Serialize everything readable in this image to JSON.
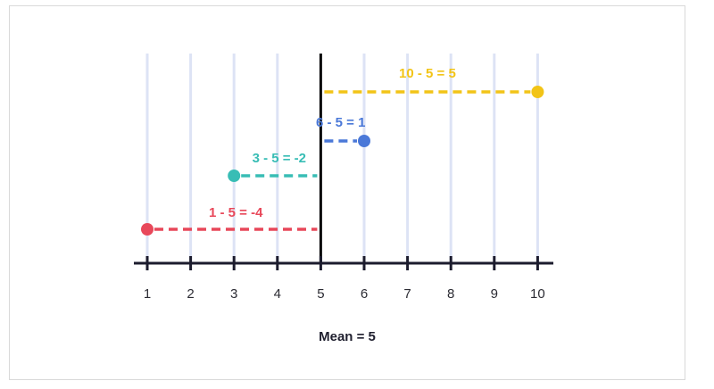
{
  "diagram": {
    "title": "Mean = 5",
    "mean": 5,
    "axis": {
      "min": 1,
      "max": 10,
      "ticks": [
        "1",
        "2",
        "3",
        "4",
        "5",
        "6",
        "7",
        "8",
        "9",
        "10"
      ]
    },
    "deviations": [
      {
        "value": 1,
        "label": "1 - 5 = -4",
        "color": "#e8485a"
      },
      {
        "value": 3,
        "label": "3 - 5 = -2",
        "color": "#38bdb5"
      },
      {
        "value": 6,
        "label": "6 - 5 = 1",
        "color": "#4a78d8"
      },
      {
        "value": 10,
        "label": "10 - 5 = 5",
        "color": "#f2c417"
      }
    ],
    "colors": {
      "gridline": "#dde3f5",
      "axis": "#1c1c2e",
      "mean_line": "#0d0d0d"
    }
  }
}
